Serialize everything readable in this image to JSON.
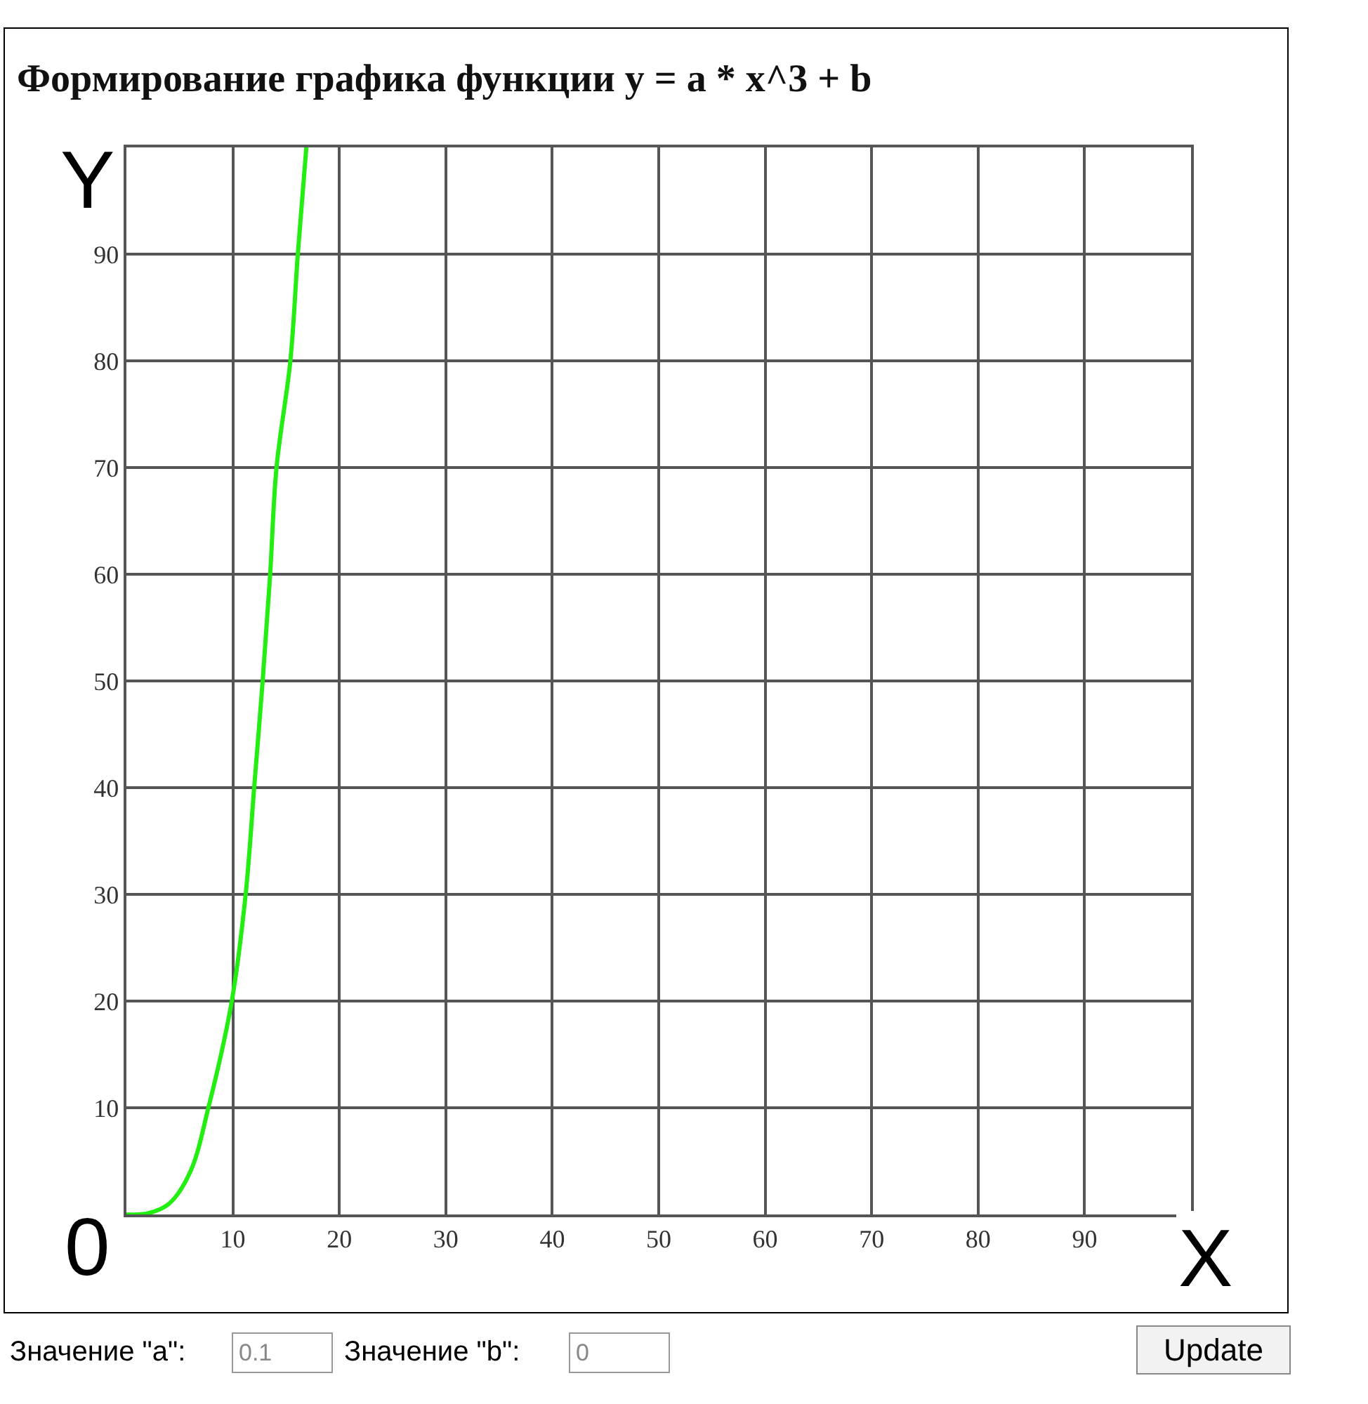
{
  "chart_data": {
    "type": "line",
    "title": "Формирование графика функции y = a * x^3 + b",
    "xlabel": "X",
    "ylabel": "Y",
    "x": [
      0,
      2,
      4,
      6,
      7.7,
      9.9,
      11.2,
      12,
      12.8,
      13.5,
      14.1,
      15.4,
      16.1,
      16.9
    ],
    "series": [
      {
        "color": "#22ee11",
        "values": [
          0,
          0.1,
          1,
          4,
          10,
          20,
          30,
          40,
          50,
          60,
          70,
          80,
          90,
          100
        ]
      }
    ],
    "xlim": [
      0,
      100
    ],
    "ylim": [
      0,
      100
    ],
    "xticks": [
      10,
      20,
      30,
      40,
      50,
      60,
      70,
      80,
      90
    ],
    "yticks": [
      10,
      20,
      30,
      40,
      50,
      60,
      70,
      80,
      90
    ],
    "grid": true,
    "marker": "none",
    "line_style": "solid",
    "annotations": [
      "0",
      "Значение \"a\":",
      "0.1",
      "Значение \"b\":",
      "0",
      "Update"
    ]
  }
}
